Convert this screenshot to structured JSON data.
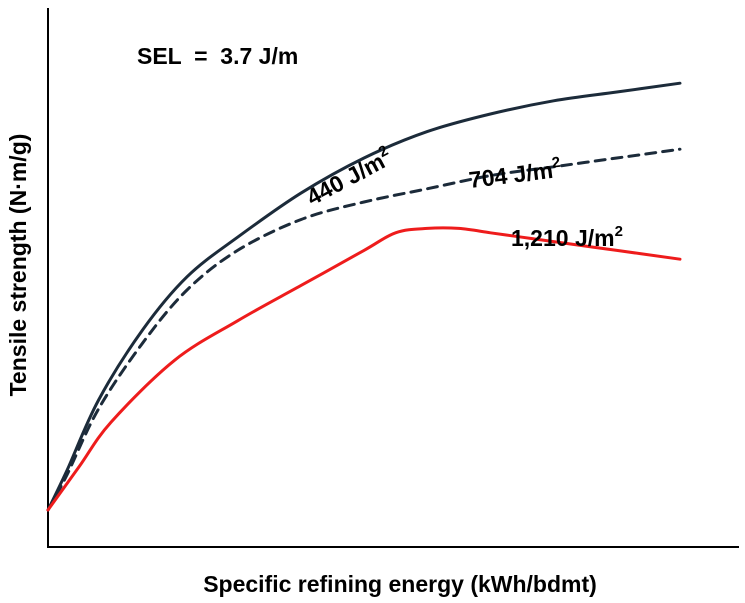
{
  "chart_data": {
    "type": "line",
    "title": "",
    "xlabel": "Specific refining energy (kWh/bdmt)",
    "ylabel": "Tensile strength (N·m/g)",
    "annotation": "SEL  =  3.7 J/m",
    "x_ticks_shown": false,
    "y_ticks_shown": false,
    "grid": false,
    "legend": "none",
    "xlim": [
      0,
      100
    ],
    "ylim": [
      0,
      100
    ],
    "series": [
      {
        "name": "440 J/m2",
        "label_text": "440 J/m",
        "label_sup": "2",
        "color": "#1c2b3a",
        "dash": "solid",
        "x": [
          0,
          3,
          8,
          15,
          22,
          30,
          40,
          50,
          60,
          70,
          80,
          90,
          100
        ],
        "y": [
          0,
          9,
          25,
          41,
          53,
          62,
          72,
          80,
          86,
          90,
          93,
          95,
          97
        ]
      },
      {
        "name": "704 J/m2",
        "label_text": "704 J/m",
        "label_sup": "2",
        "color": "#1c2b3a",
        "dash": "dashed",
        "x": [
          0,
          3,
          8,
          15,
          22,
          30,
          40,
          50,
          60,
          70,
          80,
          90,
          100
        ],
        "y": [
          0,
          8,
          23,
          38,
          50,
          59,
          66,
          70,
          73,
          76,
          78,
          80,
          82
        ]
      },
      {
        "name": "1,210 J/m2",
        "label_text": "1,210 J/m",
        "label_sup": "2",
        "color": "#ee1c1c",
        "dash": "solid",
        "x": [
          0,
          5,
          10,
          20,
          30,
          40,
          50,
          55,
          60,
          65,
          70,
          75,
          80,
          90,
          100
        ],
        "y": [
          0,
          10,
          20,
          34,
          43,
          51,
          59,
          63,
          64,
          64,
          63,
          62,
          61,
          59,
          57
        ]
      }
    ]
  }
}
